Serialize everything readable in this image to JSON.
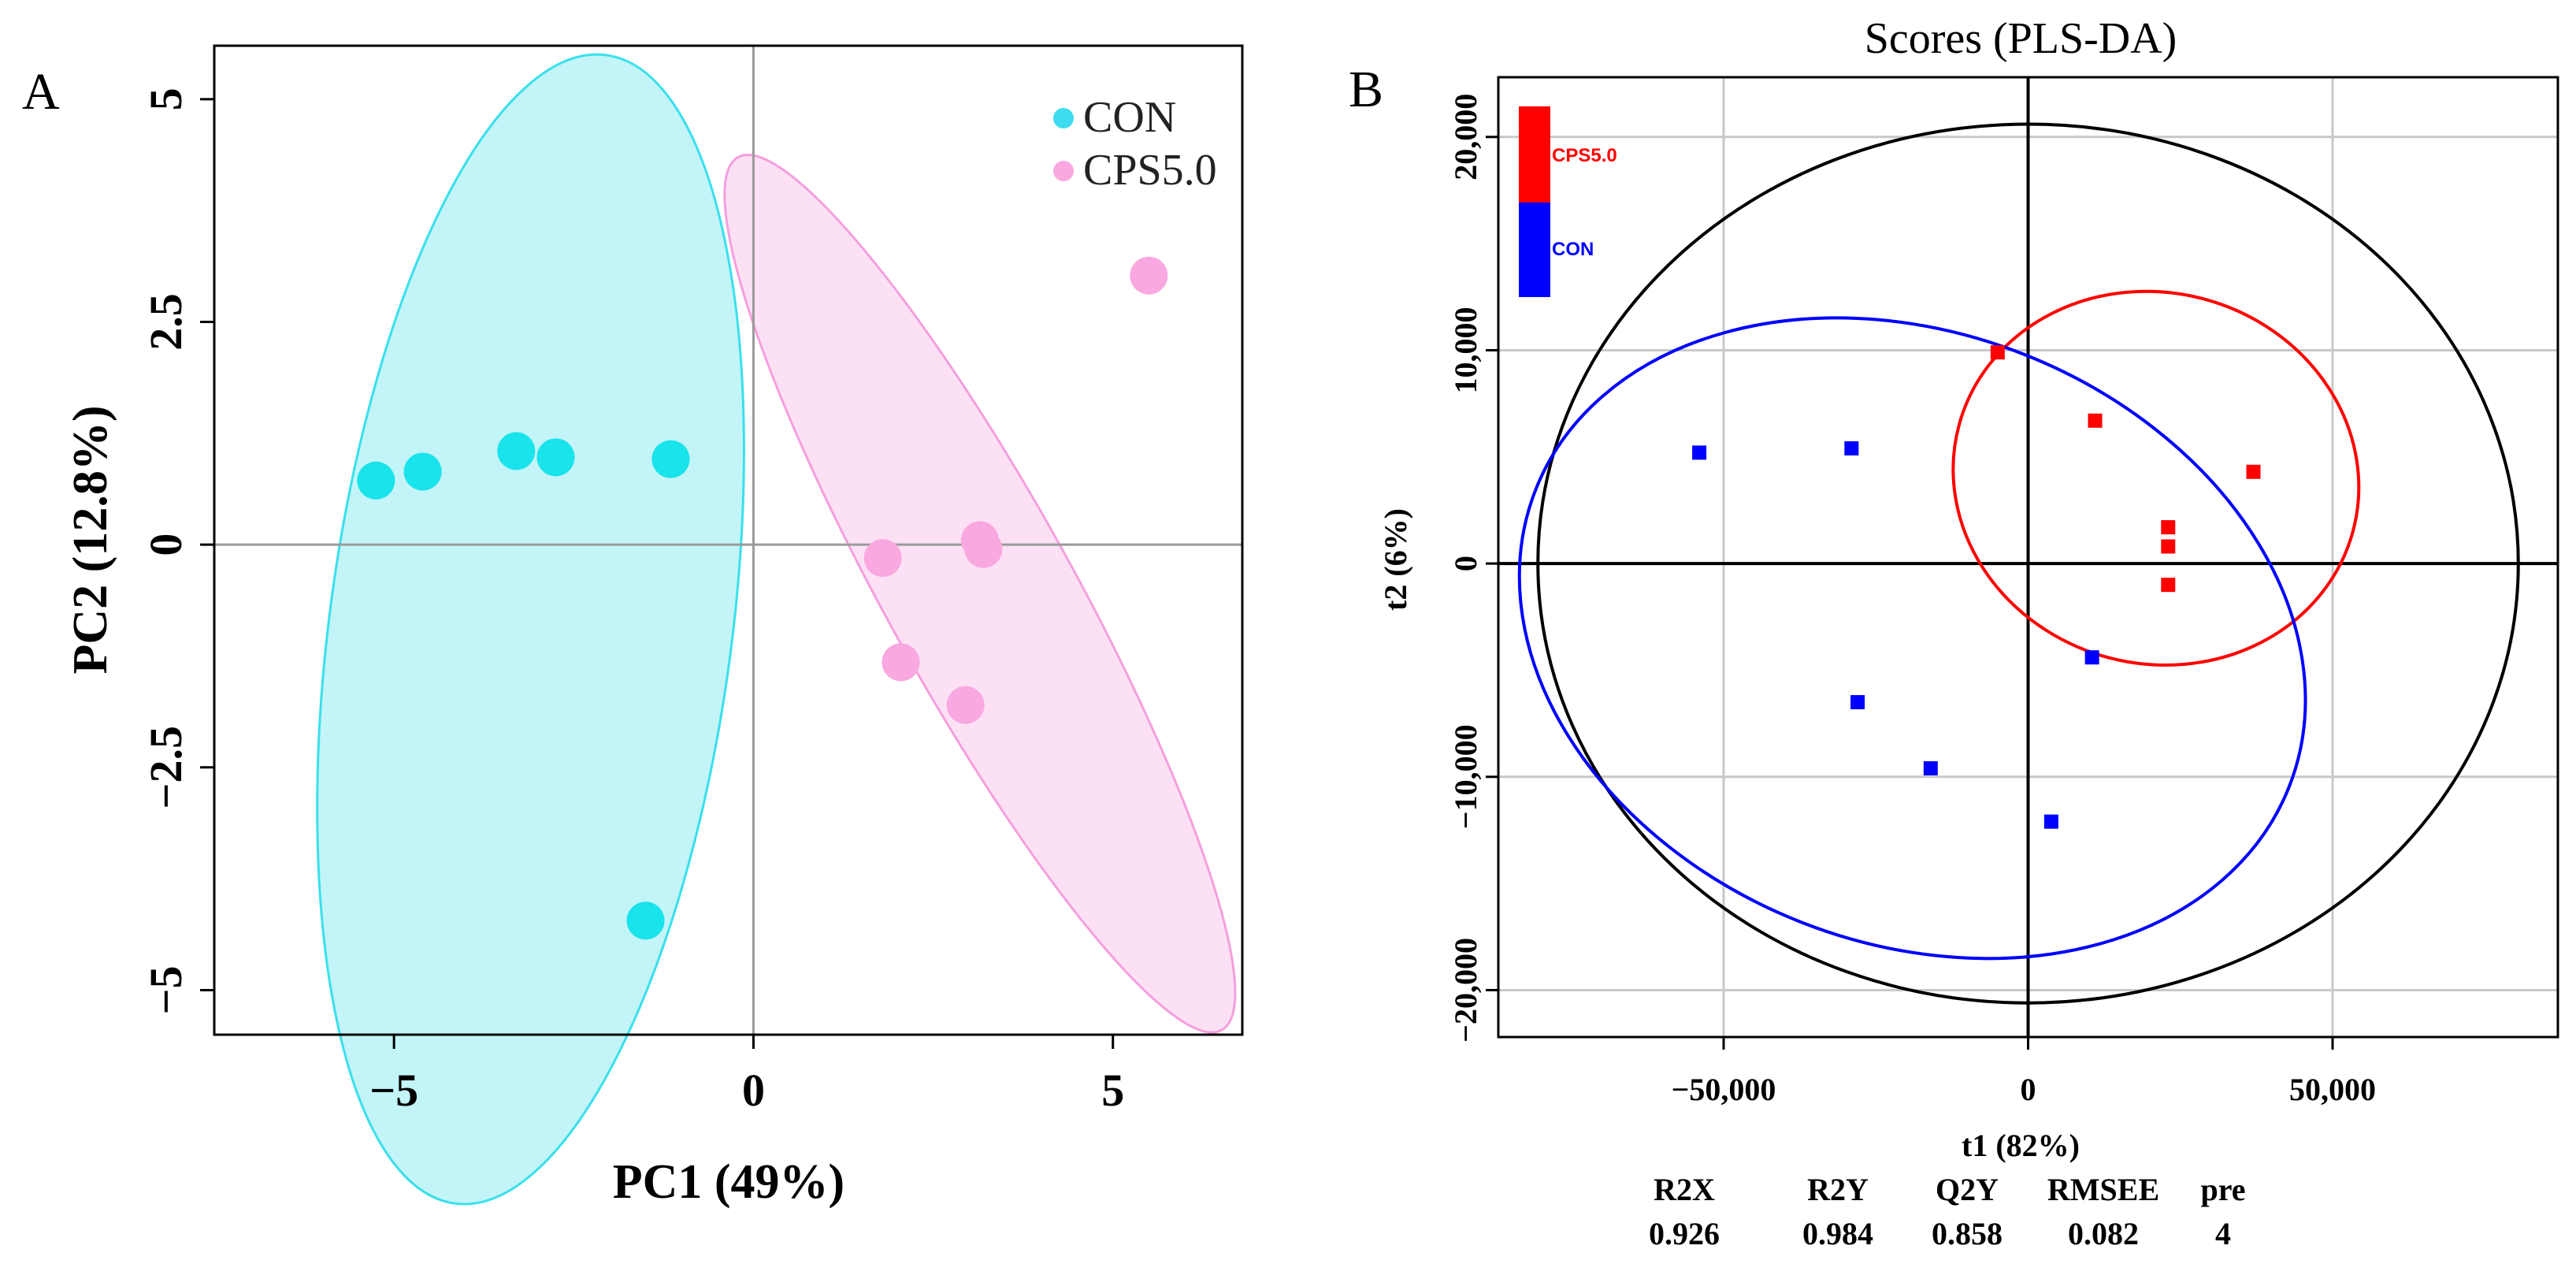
{
  "panel_a": {
    "letter": "A",
    "chart_data": {
      "type": "scatter",
      "title": "",
      "xlabel": "PC1 (49%)",
      "ylabel": "PC2 (12.8%)",
      "xlim": [
        -7.5,
        6.8
      ],
      "ylim": [
        -5.5,
        5.6
      ],
      "xticks": [
        -5,
        0,
        5
      ],
      "xtick_labels": [
        "−5",
        "0",
        "5"
      ],
      "yticks": [
        -5,
        -2.5,
        0,
        2.5,
        5
      ],
      "ytick_labels": [
        "−5",
        "−2.5",
        "0",
        "2.5",
        "5"
      ],
      "reference_lines": {
        "x": 0,
        "y": 0
      },
      "legend": {
        "position": "top-right",
        "entries": [
          "CON",
          "CPS5.0"
        ]
      },
      "series": [
        {
          "name": "CON",
          "color": "#19E3EB",
          "fill": "#B8F2F6",
          "stroke": "#39E0EC",
          "points": [
            [
              -5.25,
              0.72
            ],
            [
              -4.6,
              0.82
            ],
            [
              -3.3,
              1.05
            ],
            [
              -2.75,
              0.98
            ],
            [
              -1.15,
              0.96
            ],
            [
              -1.5,
              -4.22
            ]
          ],
          "ellipse": {
            "cx": -3.1,
            "cy": -0.95,
            "rx": 2.8,
            "ry": 6.5,
            "tilt_deg": 7.5
          }
        },
        {
          "name": "CPS5.0",
          "color": "#F9A8E0",
          "fill": "#FCDCF3",
          "stroke": "#F59FDD",
          "points": [
            [
              1.8,
              -0.15
            ],
            [
              3.15,
              0.05
            ],
            [
              3.2,
              -0.05
            ],
            [
              2.05,
              -1.32
            ],
            [
              2.95,
              -1.8
            ],
            [
              5.5,
              3.02
            ]
          ],
          "ellipse": {
            "cx": 3.15,
            "cy": -0.55,
            "rx": 1.3,
            "ry": 5.6,
            "tilt_deg": -29
          }
        }
      ]
    }
  },
  "panel_b": {
    "letter": "B",
    "chart_data": {
      "type": "scatter",
      "title": "Scores (PLS-DA)",
      "xlabel": "t1 (82%)",
      "ylabel": "t2 (6%)",
      "xlim": [
        -87000,
        87000
      ],
      "ylim": [
        -22200,
        22800
      ],
      "xticks": [
        -50000,
        0,
        50000
      ],
      "xtick_labels": [
        "−50,000",
        "0",
        "50,000"
      ],
      "yticks": [
        -20000,
        -10000,
        0,
        10000,
        20000
      ],
      "ytick_labels": [
        "−20,000",
        "−10,000",
        "0",
        "10,000",
        "20,000"
      ],
      "grid": true,
      "reference_lines": {
        "x": 0,
        "y": 0
      },
      "hotelling_ellipse": {
        "cx": 0,
        "cy": 0,
        "rx": 80500,
        "ry": 20600,
        "color": "#000000"
      },
      "legend": {
        "position": "top-left",
        "entries": [
          "CPS5.0",
          "CON"
        ]
      },
      "series": [
        {
          "name": "CPS5.0",
          "color": "#FF0000",
          "points": [
            [
              -5000,
              9900
            ],
            [
              11000,
              6700
            ],
            [
              37000,
              4300
            ],
            [
              23000,
              1700
            ],
            [
              23000,
              800
            ],
            [
              23000,
              -1000
            ]
          ],
          "ellipse": {
            "cx": 21000,
            "cy": 4000,
            "rx": 33500,
            "ry": 8700,
            "tilt_deg": 15
          }
        },
        {
          "name": "CON",
          "color": "#0000FF",
          "points": [
            [
              -54000,
              5200
            ],
            [
              -29000,
              5400
            ],
            [
              -28000,
              -6500
            ],
            [
              -16000,
              -9600
            ],
            [
              10500,
              -4400
            ],
            [
              3800,
              -12100
            ]
          ],
          "ellipse": {
            "cx": -19000,
            "cy": -3500,
            "rx": 66500,
            "ry": 14300,
            "tilt_deg": 21.5
          }
        }
      ],
      "stats_table": {
        "headers": [
          "R2X",
          "R2Y",
          "Q2Y",
          "RMSEE",
          "pre"
        ],
        "values": [
          "0.926",
          "0.984",
          "0.858",
          "0.082",
          "4"
        ]
      }
    }
  }
}
